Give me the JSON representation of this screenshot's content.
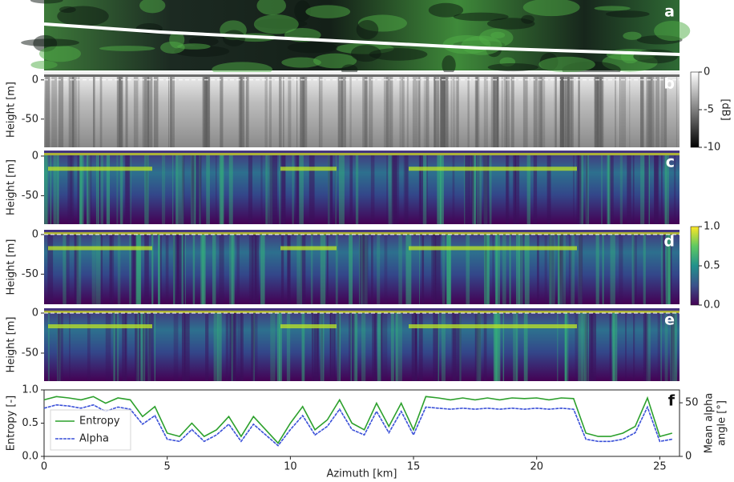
{
  "chart_data": [
    {
      "type": "image",
      "label": "a"
    },
    {
      "type": "image",
      "label": "b",
      "ylabel": "Height [m]",
      "ylim": [
        -86,
        10
      ],
      "yticks": [
        0,
        -50
      ],
      "colormap": "gray",
      "colorbar": {
        "label": "[dB]",
        "lim": [
          -10,
          0
        ],
        "ticks": [
          0,
          -5,
          -10
        ]
      }
    },
    {
      "type": "image",
      "label": "c",
      "ylabel": "Height [m]",
      "ylim": [
        -86,
        7
      ],
      "yticks": [
        0,
        -50
      ],
      "colormap": "viridis"
    },
    {
      "type": "image",
      "label": "d",
      "ylabel": "Height [m]",
      "ylim": [
        -88,
        6
      ],
      "yticks": [
        0,
        -50
      ],
      "colormap": "viridis",
      "colorbar": {
        "lim": [
          0,
          1
        ],
        "ticks": [
          {
            "value": 0,
            "label": "0.0"
          },
          {
            "value": 0.5,
            "label": "0.5"
          },
          {
            "value": 1,
            "label": "1.0"
          }
        ]
      }
    },
    {
      "type": "image",
      "label": "e",
      "ylabel": "Height [m]",
      "ylim": [
        -85,
        6
      ],
      "yticks": [
        0,
        -50
      ],
      "colormap": "viridis"
    },
    {
      "type": "line",
      "label": "f",
      "xlabel": "Azimuth  [km]",
      "ylabel": "Entropy [-]",
      "y2label": [
        "Mean alpha",
        "angle [°]"
      ],
      "xlim": [
        0,
        25.8
      ],
      "xticks": [
        0,
        5,
        10,
        15,
        20,
        25
      ],
      "ylim": [
        0,
        1
      ],
      "yticks": [
        {
          "value": 0,
          "label": "0.0"
        },
        {
          "value": 0.5,
          "label": "0.5"
        },
        {
          "value": 1,
          "label": "1.0"
        }
      ],
      "y2lim": [
        0,
        62
      ],
      "y2ticks": [
        0,
        50
      ],
      "legend": "lower left",
      "x": [
        0,
        0.5,
        1,
        1.5,
        2,
        2.5,
        3,
        3.5,
        4,
        4.5,
        5,
        5.5,
        6,
        6.5,
        7,
        7.5,
        8,
        8.5,
        9,
        9.5,
        10,
        10.5,
        11,
        11.5,
        12,
        12.5,
        13,
        13.5,
        14,
        14.5,
        15,
        15.5,
        16,
        16.5,
        17,
        17.5,
        18,
        18.5,
        19,
        19.5,
        20,
        20.5,
        21,
        21.5,
        22,
        22.5,
        23,
        23.5,
        24,
        24.5,
        25,
        25.5
      ],
      "series": [
        {
          "name": "Entropy",
          "color": "#2ca02c",
          "values": [
            0.85,
            0.9,
            0.88,
            0.85,
            0.9,
            0.8,
            0.88,
            0.85,
            0.6,
            0.75,
            0.35,
            0.3,
            0.5,
            0.3,
            0.4,
            0.6,
            0.3,
            0.6,
            0.4,
            0.2,
            0.5,
            0.75,
            0.4,
            0.55,
            0.85,
            0.5,
            0.4,
            0.8,
            0.45,
            0.8,
            0.4,
            0.9,
            0.88,
            0.85,
            0.88,
            0.85,
            0.88,
            0.85,
            0.88,
            0.87,
            0.88,
            0.85,
            0.88,
            0.87,
            0.35,
            0.3,
            0.3,
            0.35,
            0.45,
            0.88,
            0.3,
            0.35
          ]
        },
        {
          "name": "Alpha",
          "color": "#3a50d8",
          "axis": "y2",
          "values": [
            45,
            48,
            47,
            45,
            48,
            42,
            46,
            44,
            30,
            38,
            16,
            14,
            25,
            14,
            20,
            30,
            14,
            30,
            20,
            10,
            25,
            38,
            20,
            28,
            44,
            25,
            20,
            42,
            22,
            42,
            20,
            46,
            45,
            44,
            45,
            44,
            45,
            44,
            45,
            44,
            45,
            44,
            45,
            44,
            16,
            14,
            14,
            16,
            22,
            46,
            14,
            16
          ]
        }
      ]
    }
  ]
}
